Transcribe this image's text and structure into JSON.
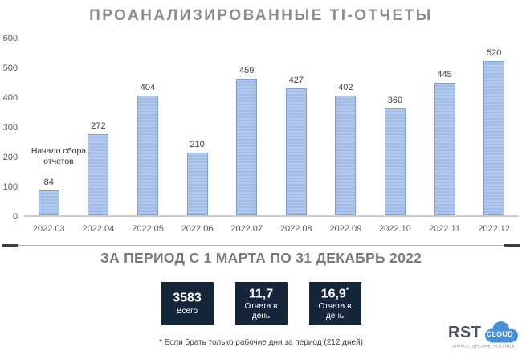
{
  "title": "ПРОАНАЛИЗИРОВАННЫЕ TI-ОТЧЕТЫ",
  "chart_data": {
    "type": "bar",
    "title": "ПРОАНАЛИЗИРОВАННЫЕ TI-ОТЧЕТЫ",
    "categories": [
      "2022.03",
      "2022.04",
      "2022.05",
      "2022.06",
      "2022.07",
      "2022.08",
      "2022.09",
      "2022.10",
      "2022.11",
      "2022.12"
    ],
    "values": [
      84,
      272,
      404,
      210,
      459,
      427,
      402,
      360,
      445,
      520
    ],
    "xlabel": "",
    "ylabel": "",
    "ylim": [
      0,
      600
    ],
    "yticks": [
      0,
      100,
      200,
      300,
      400,
      500,
      600
    ],
    "grid": false,
    "legend": false,
    "annotation": "Начало сбора отчетов",
    "bar_fill": "#a9c2e9",
    "bar_border": "#7e9ed8"
  },
  "summary": {
    "heading": "ЗА ПЕРИОД С 1 МАРТА ПО 31 ДЕКАБРЬ 2022",
    "stats": [
      {
        "value": "3583",
        "sup": "",
        "label": "Всего"
      },
      {
        "value": "11,7",
        "sup": "",
        "label": "Отчета в день"
      },
      {
        "value": "16,9",
        "sup": "*",
        "label": "Отчета в день"
      }
    ],
    "footnote": "* Если брать только рабочие дни за период (212 дней)",
    "box_color": "#16263a"
  },
  "logo": {
    "text": "RST",
    "cloud_text": "CLOUD",
    "tagline": "SIMPLE. SECURE. FLEXIBLE.",
    "cloud_color": "#4a90d9",
    "text_color": "#4a525c"
  }
}
